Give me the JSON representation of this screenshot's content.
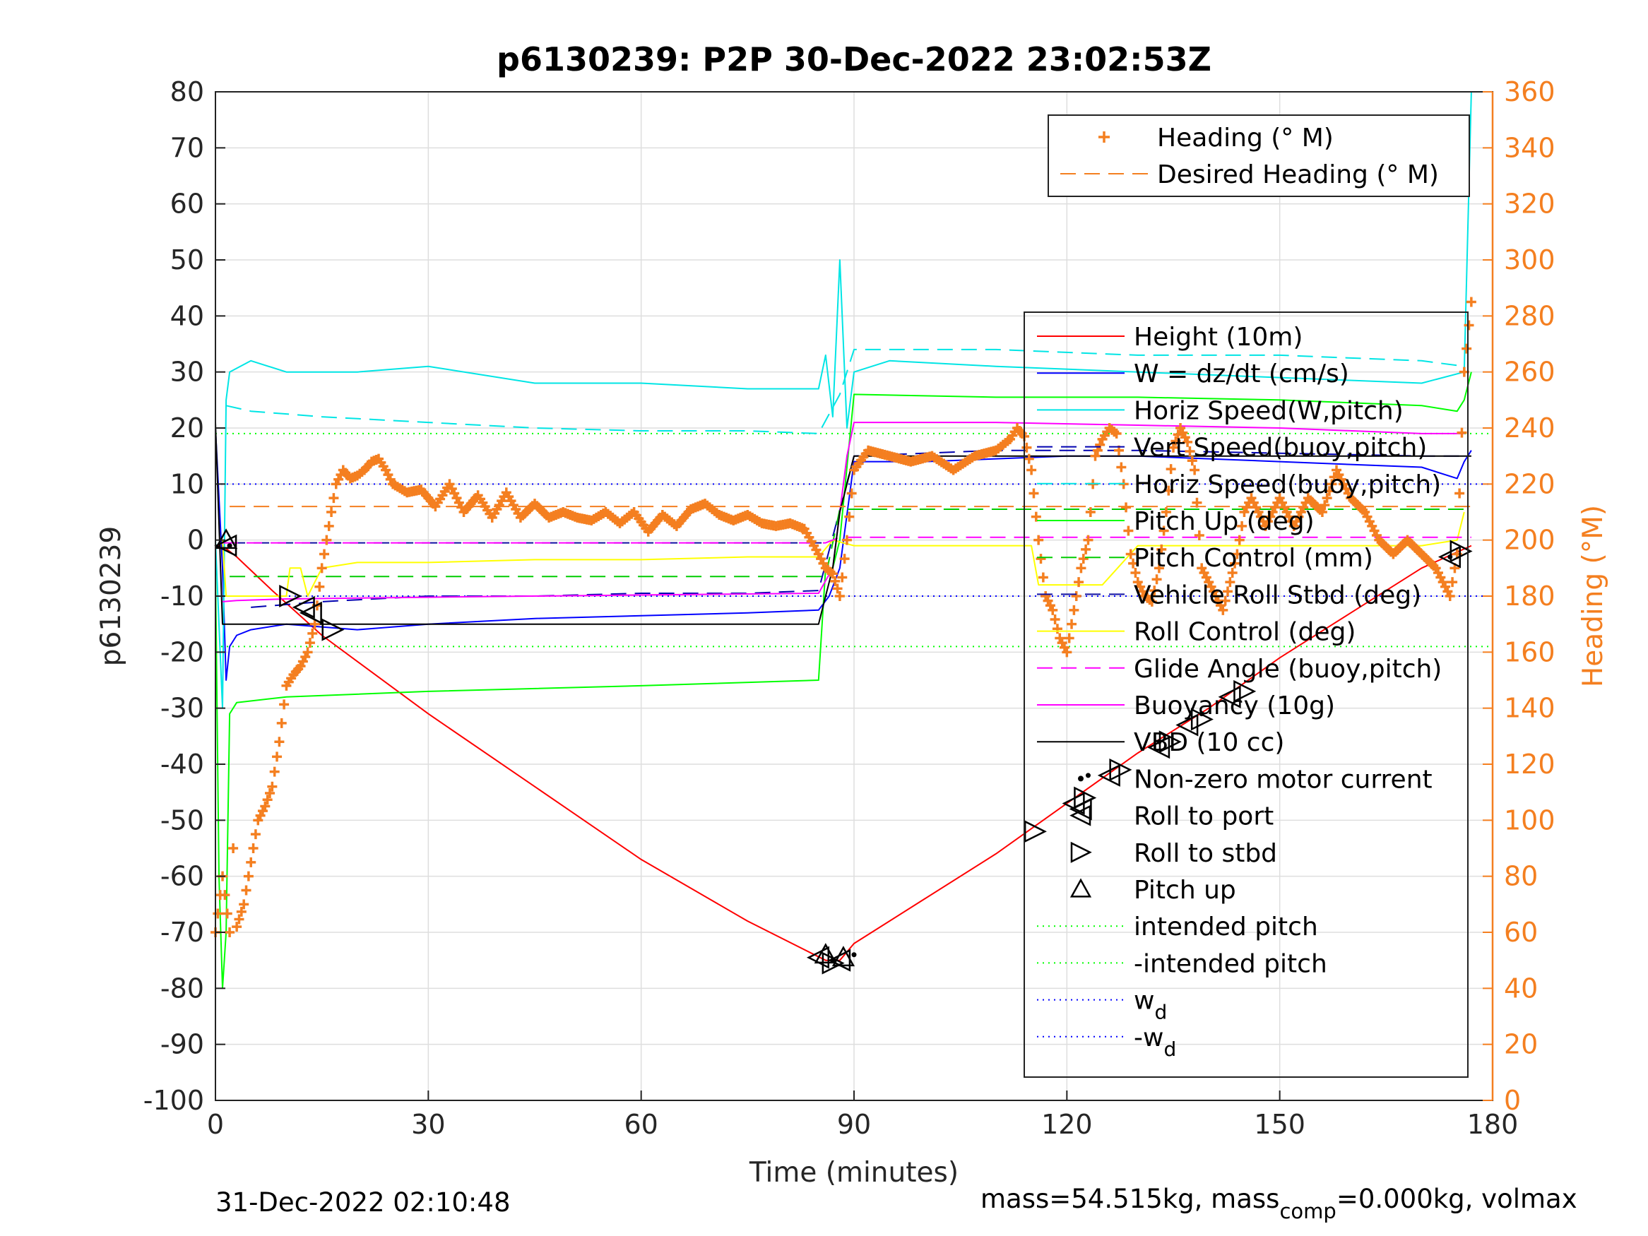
{
  "chart_data": {
    "type": "line",
    "title": "p6130239: P2P 30-Dec-2022 23:02:53Z",
    "xlabel": "Time (minutes)",
    "ylabel": "p6130239",
    "y2label": "Heading (°M)",
    "xlim": [
      0,
      180
    ],
    "ylim": [
      -100,
      80
    ],
    "y2lim": [
      0,
      360
    ],
    "xticks": [
      0,
      30,
      60,
      90,
      120,
      150,
      180
    ],
    "yticks": [
      -100,
      -90,
      -80,
      -70,
      -60,
      -50,
      -40,
      -30,
      -20,
      -10,
      0,
      10,
      20,
      30,
      40,
      50,
      60,
      70,
      80
    ],
    "y2ticks": [
      0,
      20,
      40,
      60,
      80,
      100,
      120,
      140,
      160,
      180,
      200,
      220,
      240,
      260,
      280,
      300,
      320,
      340,
      360
    ],
    "grid": true,
    "footer_left": "31-Dec-2022 02:10:48",
    "footer_right_a": "mass=54.515kg, mass",
    "footer_right_sub": "comp",
    "footer_right_b": "=0.000kg, volmax",
    "colors": {
      "heading": "#f47f20",
      "height": "#ff0000",
      "w": "#0000ff",
      "horiz_w": "#00e5e5",
      "vert_buoy": "#0000b0",
      "horiz_buoy": "#00e5e5",
      "pitch_up": "#00ff00",
      "pitch_ctrl": "#00cc00",
      "roll": "#1010a0",
      "roll_ctrl": "#ffff00",
      "glide": "#ff00ff",
      "buoyancy": "#ff00ff",
      "vbd": "#000000",
      "intended": "#00ff00",
      "wd": "#0000ff"
    },
    "legend_heading": [
      {
        "label": "Heading (° M)",
        "style": "plus",
        "color": "#f47f20"
      },
      {
        "label": "Desired Heading (° M)",
        "style": "dash",
        "color": "#f47f20"
      }
    ],
    "legend_main": [
      {
        "label": "Height (10m)",
        "style": "solid",
        "color": "#ff0000"
      },
      {
        "label": "W = dz/dt (cm/s)",
        "style": "solid",
        "color": "#0000ff"
      },
      {
        "label": "Horiz Speed(W,pitch)",
        "style": "solid",
        "color": "#00e5e5"
      },
      {
        "label": "Vert Speed(buoy,pitch)",
        "style": "dash",
        "color": "#0000b0"
      },
      {
        "label": "Horiz Speed(buoy,pitch)",
        "style": "dash",
        "color": "#00e5e5"
      },
      {
        "label": "Pitch Up (deg)",
        "style": "solid",
        "color": "#00ff00"
      },
      {
        "label": "Pitch Control (mm)",
        "style": "dash",
        "color": "#00cc00"
      },
      {
        "label": "Vehicle Roll Stbd (deg)",
        "style": "dash",
        "color": "#1010a0"
      },
      {
        "label": "Roll Control (deg)",
        "style": "solid",
        "color": "#ffff00"
      },
      {
        "label": "Glide Angle (buoy,pitch)",
        "style": "dash",
        "color": "#ff00ff"
      },
      {
        "label": "Buoyancy (10g)",
        "style": "solid",
        "color": "#ff00ff"
      },
      {
        "label": "VBD (10 cc)",
        "style": "solid",
        "color": "#000000"
      },
      {
        "label": "Non-zero motor current",
        "style": "dot",
        "color": "#000000"
      },
      {
        "label": "Roll to port",
        "style": "tri-left",
        "color": "#000000"
      },
      {
        "label": "Roll to stbd",
        "style": "tri-right",
        "color": "#000000"
      },
      {
        "label": "Pitch up",
        "style": "tri-up",
        "color": "#000000"
      },
      {
        "label": "intended pitch",
        "style": "dotted",
        "color": "#00ff00"
      },
      {
        "label": "-intended pitch",
        "style": "dotted",
        "color": "#00ff00"
      },
      {
        "label": "w",
        "sub": "d",
        "style": "dotted",
        "color": "#0000ff"
      },
      {
        "label": "-w",
        "sub": "d",
        "style": "dotted",
        "color": "#0000ff"
      }
    ],
    "reference_lines": [
      {
        "name": "intended pitch",
        "y": 19
      },
      {
        "name": "-intended pitch",
        "y": -19
      },
      {
        "name": "w_d",
        "y": 10
      },
      {
        "name": "-w_d",
        "y": -10
      }
    ],
    "series": [
      {
        "name": "Height (10m)",
        "axis": "left",
        "x": [
          0,
          1,
          3,
          8,
          15,
          30,
          45,
          60,
          75,
          86,
          88,
          90,
          100,
          110,
          120,
          130,
          140,
          150,
          160,
          170,
          177
        ],
        "y": [
          -1,
          -1,
          -3,
          -9,
          -17,
          -31,
          -44,
          -57,
          -68,
          -75,
          -75,
          -72,
          -64,
          -56,
          -47,
          -38,
          -30,
          -21,
          -13,
          -5,
          -1
        ]
      },
      {
        "name": "W = dz/dt (cm/s)",
        "axis": "left",
        "x": [
          0,
          1,
          1.5,
          2,
          3,
          5,
          10,
          20,
          30,
          45,
          60,
          75,
          85,
          86.5,
          88,
          90,
          100,
          110,
          120,
          130,
          140,
          150,
          160,
          170,
          175,
          176,
          177
        ],
        "y": [
          20,
          -5,
          -25,
          -19,
          -17,
          -16,
          -15,
          -16,
          -15,
          -14,
          -13.5,
          -13,
          -12.5,
          -10,
          -5,
          14,
          14,
          14.5,
          15,
          15,
          14.5,
          14,
          13.5,
          13,
          11,
          14,
          16
        ]
      },
      {
        "name": "Horiz Speed(W,pitch)",
        "axis": "left",
        "x": [
          0,
          1,
          1.5,
          2,
          5,
          10,
          20,
          30,
          45,
          60,
          75,
          85,
          86,
          87,
          88,
          89,
          90,
          95,
          110,
          130,
          150,
          170,
          176,
          177
        ],
        "y": [
          0,
          -30,
          25,
          30,
          32,
          30,
          30,
          31,
          28,
          28,
          27,
          27,
          33,
          22,
          50,
          20,
          30,
          32,
          31,
          30,
          29,
          28,
          30,
          80
        ]
      },
      {
        "name": "Vert Speed(buoy,pitch)",
        "axis": "left",
        "x": [
          5,
          15,
          30,
          45,
          60,
          75,
          85,
          90,
          110,
          130,
          150,
          170,
          176
        ],
        "y": [
          -12,
          -11,
          -10,
          -10,
          -9.5,
          -9.5,
          -9,
          15,
          16,
          16,
          15.5,
          15,
          15
        ]
      },
      {
        "name": "Horiz Speed(buoy,pitch)",
        "axis": "left",
        "x": [
          1.5,
          5,
          15,
          30,
          45,
          60,
          75,
          85,
          88,
          90,
          110,
          130,
          150,
          170,
          176
        ],
        "y": [
          24,
          23,
          22,
          21,
          20,
          19.5,
          19.5,
          19,
          26,
          34,
          34,
          33,
          33,
          32,
          31
        ]
      },
      {
        "name": "Pitch Up (deg)",
        "axis": "left",
        "x": [
          0,
          0.5,
          1,
          1.5,
          2,
          3,
          10,
          30,
          60,
          85,
          86,
          87,
          88,
          90,
          110,
          130,
          150,
          170,
          175,
          176,
          177
        ],
        "y": [
          -5,
          -60,
          -80,
          -70,
          -31,
          -29,
          -28,
          -27,
          -26,
          -25,
          -5,
          -5,
          0,
          26,
          25.5,
          25.5,
          25,
          24,
          23,
          25,
          30
        ]
      },
      {
        "name": "Pitch Control (mm)",
        "axis": "left",
        "x": [
          2,
          86,
          88,
          177
        ],
        "y": [
          -6.5,
          -6.5,
          5.5,
          5.5
        ]
      },
      {
        "name": "Vehicle Roll Stbd (deg)",
        "axis": "left",
        "x": [
          2,
          86
        ],
        "y": [
          -0.5,
          -0.5
        ]
      },
      {
        "name": "Roll Control (deg)",
        "axis": "left",
        "x": [
          1,
          1.5,
          2,
          3,
          10,
          10.5,
          12,
          13,
          15,
          20,
          30,
          45,
          60,
          75,
          85,
          87,
          90,
          110,
          115,
          116,
          120,
          125,
          130,
          135,
          140,
          150,
          165,
          170,
          175,
          176
        ],
        "y": [
          0,
          -10,
          -10,
          -10,
          -10,
          -5,
          -5,
          -10,
          -5,
          -4,
          -4,
          -3.5,
          -3.5,
          -3,
          -3,
          0,
          -1,
          -1,
          -1,
          -8,
          -8,
          -8,
          -1,
          -1,
          -1,
          -1,
          -1,
          -1,
          0,
          5
        ]
      },
      {
        "name": "Glide Angle (buoy,pitch)",
        "axis": "left",
        "x": [
          1,
          86,
          88,
          177
        ],
        "y": [
          -0.5,
          -0.5,
          0.5,
          0.5
        ]
      },
      {
        "name": "Buoyancy (10g)",
        "axis": "left",
        "x": [
          1,
          3,
          10,
          30,
          60,
          85,
          87,
          88,
          89,
          90,
          110,
          130,
          150,
          170,
          176
        ],
        "y": [
          -11,
          -10.8,
          -10.5,
          -10.2,
          -9.8,
          -9.5,
          -5,
          5,
          15,
          21,
          21,
          20.5,
          20,
          19,
          19
        ]
      },
      {
        "name": "VBD (10 cc)",
        "axis": "left",
        "x": [
          0,
          1,
          2,
          84,
          85,
          86,
          87,
          88,
          89,
          90,
          177
        ],
        "y": [
          21,
          -15,
          -15,
          -15,
          -15,
          -10,
          -5,
          5,
          10,
          15,
          15
        ]
      },
      {
        "name": "Heading (° M)",
        "axis": "right",
        "x": [
          0,
          1,
          2,
          2.5,
          3,
          4,
          5,
          6,
          7,
          8,
          9,
          10,
          11,
          12,
          13,
          14,
          15,
          16,
          17,
          18,
          19,
          20,
          21,
          22,
          23,
          24,
          25,
          27,
          29,
          31,
          33,
          35,
          37,
          39,
          41,
          43,
          45,
          47,
          49,
          51,
          53,
          55,
          57,
          59,
          61,
          63,
          65,
          67,
          69,
          71,
          73,
          75,
          77,
          79,
          81,
          83,
          85,
          86,
          87,
          88,
          89,
          90,
          92,
          95,
          98,
          101,
          104,
          107,
          110,
          112,
          113,
          114,
          115,
          116,
          117,
          118,
          119,
          120,
          121,
          122,
          123,
          124,
          125,
          126,
          127,
          128,
          129,
          130,
          131,
          132,
          133,
          134,
          135,
          136,
          137,
          138,
          139,
          140,
          141,
          142,
          143,
          144,
          145,
          146,
          148,
          150,
          152,
          154,
          156,
          158,
          160,
          162,
          164,
          166,
          168,
          170,
          172,
          173,
          174,
          175,
          176,
          177
        ],
        "y": [
          60,
          80,
          60,
          90,
          62,
          70,
          85,
          100,
          105,
          112,
          128,
          148,
          152,
          155,
          160,
          170,
          190,
          205,
          220,
          225,
          222,
          223,
          225,
          228,
          229,
          225,
          220,
          217,
          218,
          212,
          220,
          210,
          216,
          208,
          217,
          208,
          213,
          208,
          210,
          208,
          207,
          210,
          206,
          210,
          203,
          209,
          205,
          211,
          213,
          209,
          207,
          209,
          206,
          205,
          206,
          204,
          195,
          190,
          188,
          180,
          200,
          225,
          232,
          230,
          228,
          230,
          225,
          230,
          232,
          236,
          240,
          237,
          225,
          200,
          180,
          175,
          165,
          160,
          175,
          190,
          200,
          230,
          236,
          240,
          238,
          220,
          195,
          185,
          180,
          178,
          190,
          210,
          233,
          240,
          235,
          225,
          190,
          185,
          180,
          175,
          185,
          195,
          210,
          215,
          205,
          215,
          205,
          215,
          210,
          225,
          215,
          210,
          200,
          195,
          200,
          195,
          190,
          185,
          180,
          195,
          260,
          285
        ]
      },
      {
        "name": "Desired Heading (° M)",
        "axis": "right",
        "x": [
          2,
          177
        ],
        "y": [
          212,
          212
        ]
      }
    ],
    "markers": {
      "roll_port": [
        [
          1.5,
          -1
        ],
        [
          12.5,
          -12
        ],
        [
          13.5,
          -13
        ],
        [
          85,
          -74.5
        ],
        [
          88,
          -75
        ],
        [
          121,
          -47
        ],
        [
          122,
          -48
        ],
        [
          126,
          -42
        ],
        [
          133,
          -37
        ],
        [
          137,
          -33
        ],
        [
          143,
          -28
        ],
        [
          174,
          -3
        ]
      ],
      "roll_stbd": [
        [
          10.5,
          -10
        ],
        [
          16.5,
          -16
        ],
        [
          87,
          -75.5
        ],
        [
          115.5,
          -52
        ],
        [
          122.5,
          -46
        ],
        [
          127.5,
          -41
        ],
        [
          134.5,
          -36
        ],
        [
          139,
          -32
        ],
        [
          145,
          -27
        ],
        [
          175.5,
          -2
        ]
      ],
      "pitch_up": [
        [
          1.5,
          0
        ],
        [
          86,
          -74
        ],
        [
          88.5,
          -74.5
        ]
      ],
      "motor_dots": [
        [
          2,
          -1
        ],
        [
          87,
          -75
        ],
        [
          90,
          -74
        ],
        [
          123,
          -42
        ],
        [
          133,
          -36
        ],
        [
          139,
          -31
        ],
        [
          174,
          -3
        ]
      ]
    }
  }
}
